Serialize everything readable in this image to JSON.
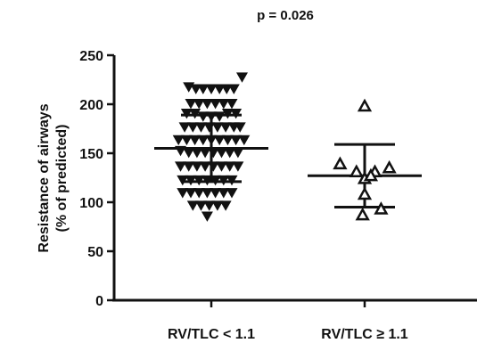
{
  "chart_data": {
    "type": "scatter",
    "title": "p = 0.026",
    "ylabel_line1": "Resistance of airways",
    "ylabel_line2": "(% of predicted)",
    "ylim": [
      0,
      250
    ],
    "yticks": [
      "0",
      "50",
      "100",
      "150",
      "200",
      "250"
    ],
    "categories": [
      "RV/TLC < 1.1",
      "RV/TLC ≥ 1.1"
    ],
    "colors": {
      "ink": "#111111",
      "background": "#ffffff"
    },
    "series": [
      {
        "category": "RV/TLC < 1.1",
        "marker": "filled-down-triangle",
        "mean": 155,
        "sd_upper": 189,
        "sd_lower": 121,
        "points": [
          [
            -0.22,
            218
          ],
          [
            -0.15,
            216
          ],
          [
            -0.08,
            216
          ],
          [
            0.0,
            216
          ],
          [
            0.08,
            216
          ],
          [
            0.15,
            216
          ],
          [
            0.22,
            216
          ],
          [
            0.3,
            228
          ],
          [
            -0.2,
            201
          ],
          [
            -0.12,
            201
          ],
          [
            -0.04,
            201
          ],
          [
            0.04,
            201
          ],
          [
            0.12,
            201
          ],
          [
            0.2,
            201
          ],
          [
            -0.24,
            191
          ],
          [
            -0.16,
            191
          ],
          [
            -0.08,
            188
          ],
          [
            0.0,
            188
          ],
          [
            0.08,
            188
          ],
          [
            0.16,
            191
          ],
          [
            0.24,
            191
          ],
          [
            -0.26,
            177
          ],
          [
            -0.18,
            177
          ],
          [
            -0.1,
            177
          ],
          [
            -0.02,
            177
          ],
          [
            0.06,
            177
          ],
          [
            0.14,
            177
          ],
          [
            0.22,
            177
          ],
          [
            0.28,
            177
          ],
          [
            -0.32,
            164
          ],
          [
            -0.24,
            164
          ],
          [
            -0.16,
            164
          ],
          [
            -0.08,
            164
          ],
          [
            0.0,
            164
          ],
          [
            0.08,
            164
          ],
          [
            0.16,
            164
          ],
          [
            0.24,
            164
          ],
          [
            0.32,
            164
          ],
          [
            -0.3,
            153
          ],
          [
            -0.22,
            151
          ],
          [
            -0.14,
            151
          ],
          [
            -0.06,
            151
          ],
          [
            0.02,
            151
          ],
          [
            0.1,
            151
          ],
          [
            0.18,
            151
          ],
          [
            0.26,
            151
          ],
          [
            -0.3,
            137
          ],
          [
            -0.22,
            137
          ],
          [
            -0.14,
            137
          ],
          [
            -0.06,
            137
          ],
          [
            0.02,
            137
          ],
          [
            0.1,
            137
          ],
          [
            0.18,
            137
          ],
          [
            0.26,
            137
          ],
          [
            -0.28,
            123
          ],
          [
            -0.2,
            123
          ],
          [
            -0.12,
            123
          ],
          [
            -0.04,
            123
          ],
          [
            0.04,
            123
          ],
          [
            0.12,
            123
          ],
          [
            0.2,
            123
          ],
          [
            -0.28,
            110
          ],
          [
            -0.2,
            110
          ],
          [
            -0.12,
            110
          ],
          [
            -0.04,
            110
          ],
          [
            0.04,
            110
          ],
          [
            0.12,
            110
          ],
          [
            0.2,
            110
          ],
          [
            -0.18,
            97
          ],
          [
            -0.1,
            97
          ],
          [
            -0.02,
            97
          ],
          [
            0.06,
            97
          ],
          [
            0.14,
            97
          ],
          [
            -0.04,
            86
          ]
        ]
      },
      {
        "category": "RV/TLC ≥ 1.1",
        "marker": "open-up-triangle",
        "mean": 127,
        "sd_upper": 159,
        "sd_lower": 95,
        "points": [
          [
            0.0,
            198
          ],
          [
            -0.24,
            139
          ],
          [
            -0.08,
            131
          ],
          [
            0.1,
            131
          ],
          [
            0.24,
            135
          ],
          [
            0.0,
            124
          ],
          [
            0.06,
            127
          ],
          [
            0.0,
            108
          ],
          [
            0.16,
            93
          ],
          [
            -0.02,
            87
          ]
        ]
      }
    ]
  }
}
